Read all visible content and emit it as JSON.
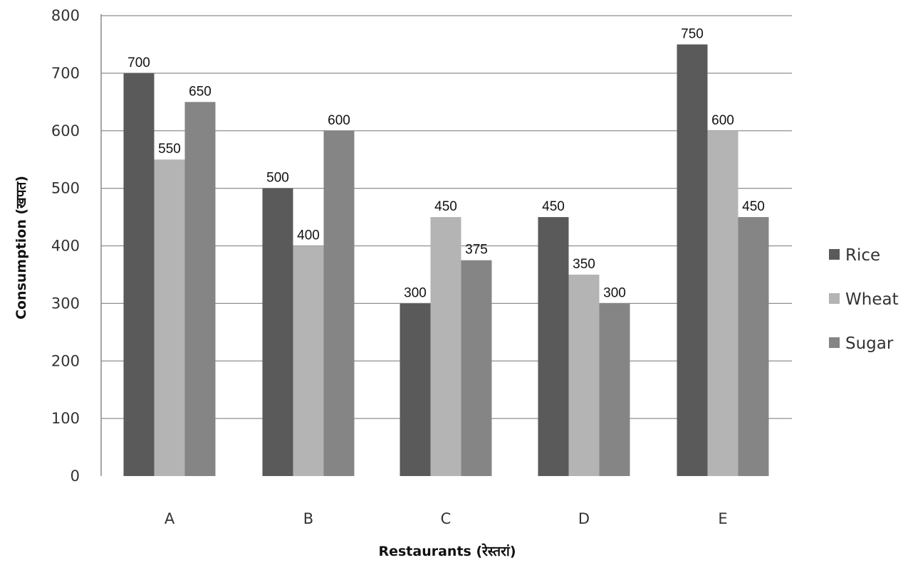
{
  "chart_data": {
    "type": "bar",
    "categories": [
      "A",
      "B",
      "C",
      "D",
      "E"
    ],
    "series": [
      {
        "name": "Rice",
        "values": [
          700,
          500,
          300,
          450,
          750
        ],
        "color": "#5a5a5a"
      },
      {
        "name": "Wheat",
        "values": [
          550,
          400,
          450,
          350,
          600
        ],
        "color": "#b4b4b4"
      },
      {
        "name": "Sugar",
        "values": [
          650,
          600,
          375,
          300,
          450
        ],
        "color": "#858585"
      }
    ],
    "xlabel": "Restaurants (रेस्तरां)",
    "ylabel": "Consumption (खपत)",
    "ylim": [
      0,
      800
    ],
    "yticks": [
      0,
      100,
      200,
      300,
      400,
      500,
      600,
      700,
      800
    ],
    "grid": true,
    "legend": "right"
  }
}
